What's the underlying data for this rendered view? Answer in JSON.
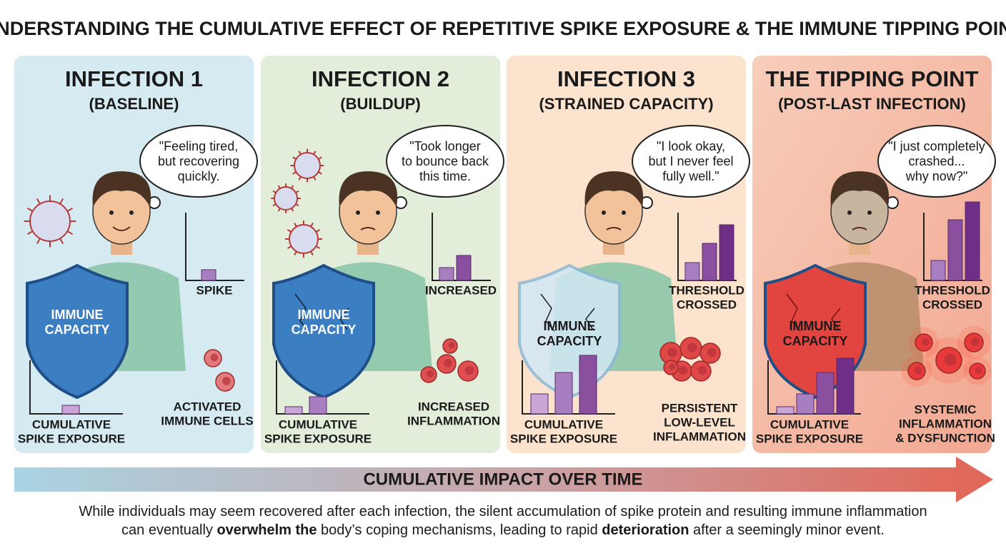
{
  "header": {
    "title": "UNDERSTANDING THE CUMULATIVE EFFECT OF REPETITIVE SPIKE EXPOSURE & THE IMMUNE TIPPING POINT"
  },
  "panels": [
    {
      "title": "INFECTION 1",
      "subtitle": "(BASELINE)",
      "thought": [
        "\"Feeling tired,",
        "but recovering",
        "quickly."
      ],
      "shield_label": [
        "IMMUNE",
        "CAPACITY"
      ],
      "chart_label": [
        "SPIKE"
      ],
      "cells_label": [
        "ACTIVATED",
        "IMMUNE CELLS"
      ],
      "cumulative_label": [
        "CUMULATIVE",
        "SPIKE EXPOSURE"
      ]
    },
    {
      "title": "INFECTION 2",
      "subtitle": "(BUILDUP)",
      "thought": [
        "\"Took longer",
        "to bounce back",
        "this time."
      ],
      "shield_label": [
        "IMMUNE",
        "CAPACITY"
      ],
      "chart_label": [
        "INCREASED"
      ],
      "cells_label": [
        "INCREASED",
        "INFLAMMATION"
      ],
      "cumulative_label": [
        "CUMULATIVE",
        "SPIKE EXPOSURE"
      ]
    },
    {
      "title": "INFECTION 3",
      "subtitle": "(STRAINED CAPACITY)",
      "thought": [
        "\"I look okay,",
        "but I never feel",
        "fully well.\""
      ],
      "shield_label": [
        "IMMUNE",
        "CAPACITY"
      ],
      "chart_label": [
        "THRESHOLD",
        "CROSSED"
      ],
      "cells_label": [
        "PERSISTENT",
        "LOW-LEVEL",
        "INFLAMMATION"
      ],
      "cumulative_label": [
        "CUMULATIVE",
        "SPIKE EXPOSURE"
      ]
    },
    {
      "title": "THE TIPPING POINT",
      "subtitle": "(POST-LAST INFECTION)",
      "thought": [
        "\"I just completely",
        "crashed...",
        "why now?\""
      ],
      "shield_label": [
        "IMMUNE",
        "CAPACITY"
      ],
      "chart_label": [
        "THRESHOLD",
        "CROSSED"
      ],
      "cells_label": [
        "SYSTEMIC",
        "INFLAMMATION",
        "& DYSFUNCTION"
      ],
      "cumulative_label": [
        "CUMULATIVE",
        "SPIKE EXPOSURE"
      ]
    }
  ],
  "timeline": {
    "label": "CUMULATIVE IMPACT OVER TIME"
  },
  "footer": {
    "lines": [
      [
        {
          "text": "While individuals may seem recovered after each infection, the silent accumulation of spike protein and resulting immune inflammation",
          "bold": false
        }
      ],
      [
        {
          "text": "can eventually ",
          "bold": false
        },
        {
          "text": "overwhelm the",
          "bold": true
        },
        {
          "text": " body’s coping mechanisms, leading to rapid ",
          "bold": false
        },
        {
          "text": "deterioration",
          "bold": true
        },
        {
          "text": " after a seemingly minor event.",
          "bold": false
        }
      ]
    ]
  }
}
